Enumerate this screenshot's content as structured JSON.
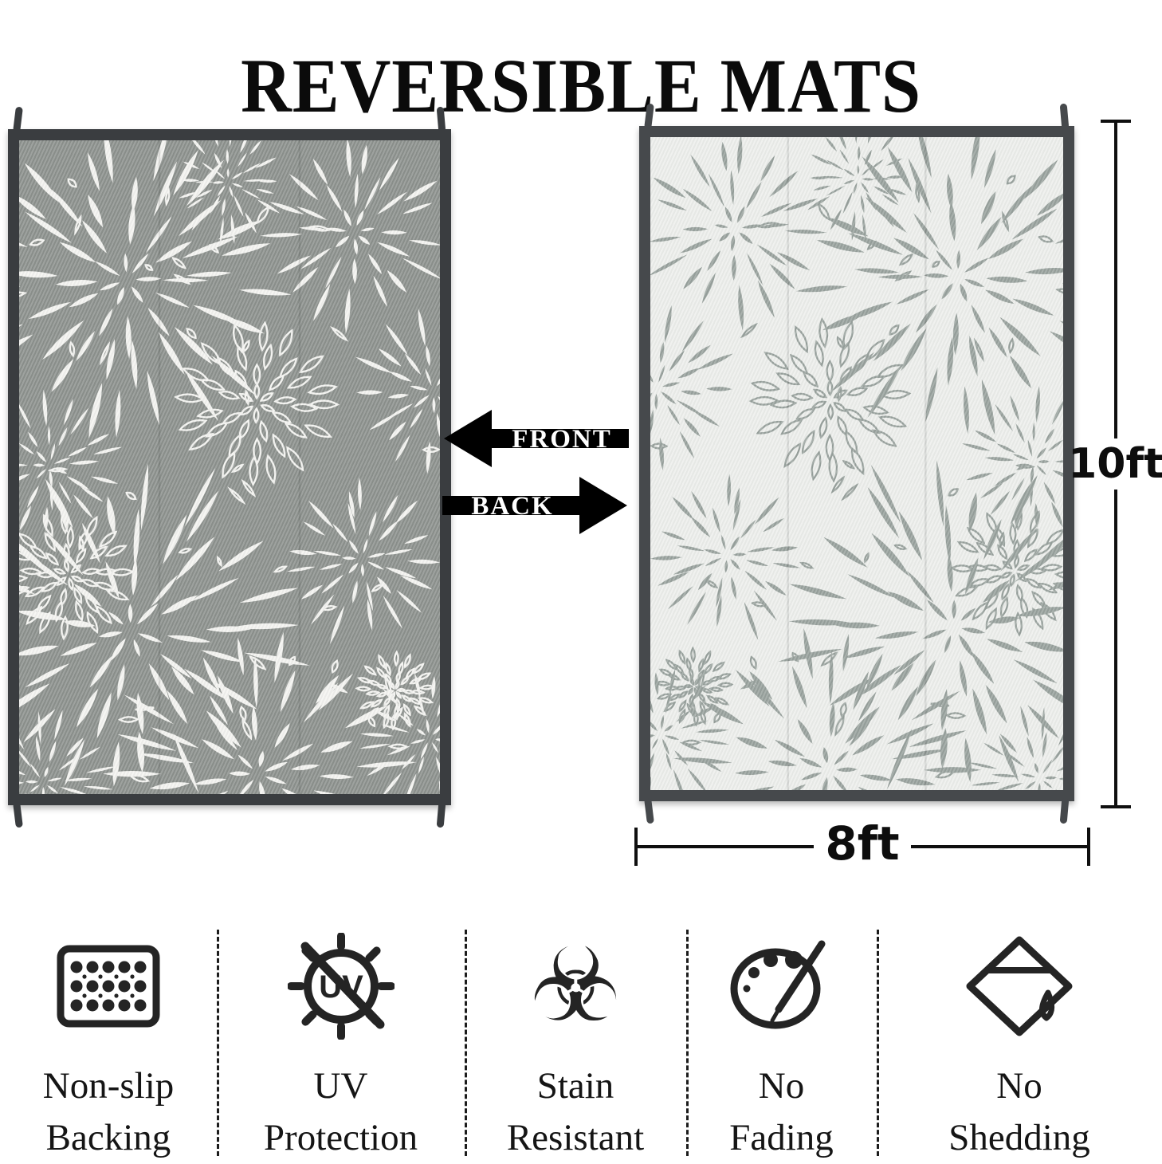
{
  "title": "REVERSIBLE MATS",
  "annotations": {
    "front_arrow": "FRONT",
    "back_arrow": "BACK",
    "height_label": "10ft",
    "width_label": "8ft"
  },
  "mats": {
    "front": {
      "side": "front",
      "background": "#8d928e",
      "petal": "#f4f4f1",
      "binding": "#3a3d40"
    },
    "back": {
      "side": "back",
      "background": "#edefec",
      "petal": "#99a29e",
      "binding": "#46494c"
    }
  },
  "features": [
    {
      "name": "non-slip-backing",
      "lines": [
        "Non-slip",
        "Backing"
      ]
    },
    {
      "name": "uv-protection",
      "lines": [
        "UV",
        "Protection"
      ]
    },
    {
      "name": "stain-resistant",
      "lines": [
        "Stain",
        "Resistant"
      ]
    },
    {
      "name": "no-fading",
      "lines": [
        "No",
        "Fading"
      ]
    },
    {
      "name": "no-shedding",
      "lines": [
        "No",
        "Shedding"
      ]
    }
  ],
  "colors": {
    "annotation": "#0f0f0f",
    "arrow": "#000000",
    "icon": "#242424",
    "label": "#151515",
    "divider": "#1c1c1c"
  }
}
